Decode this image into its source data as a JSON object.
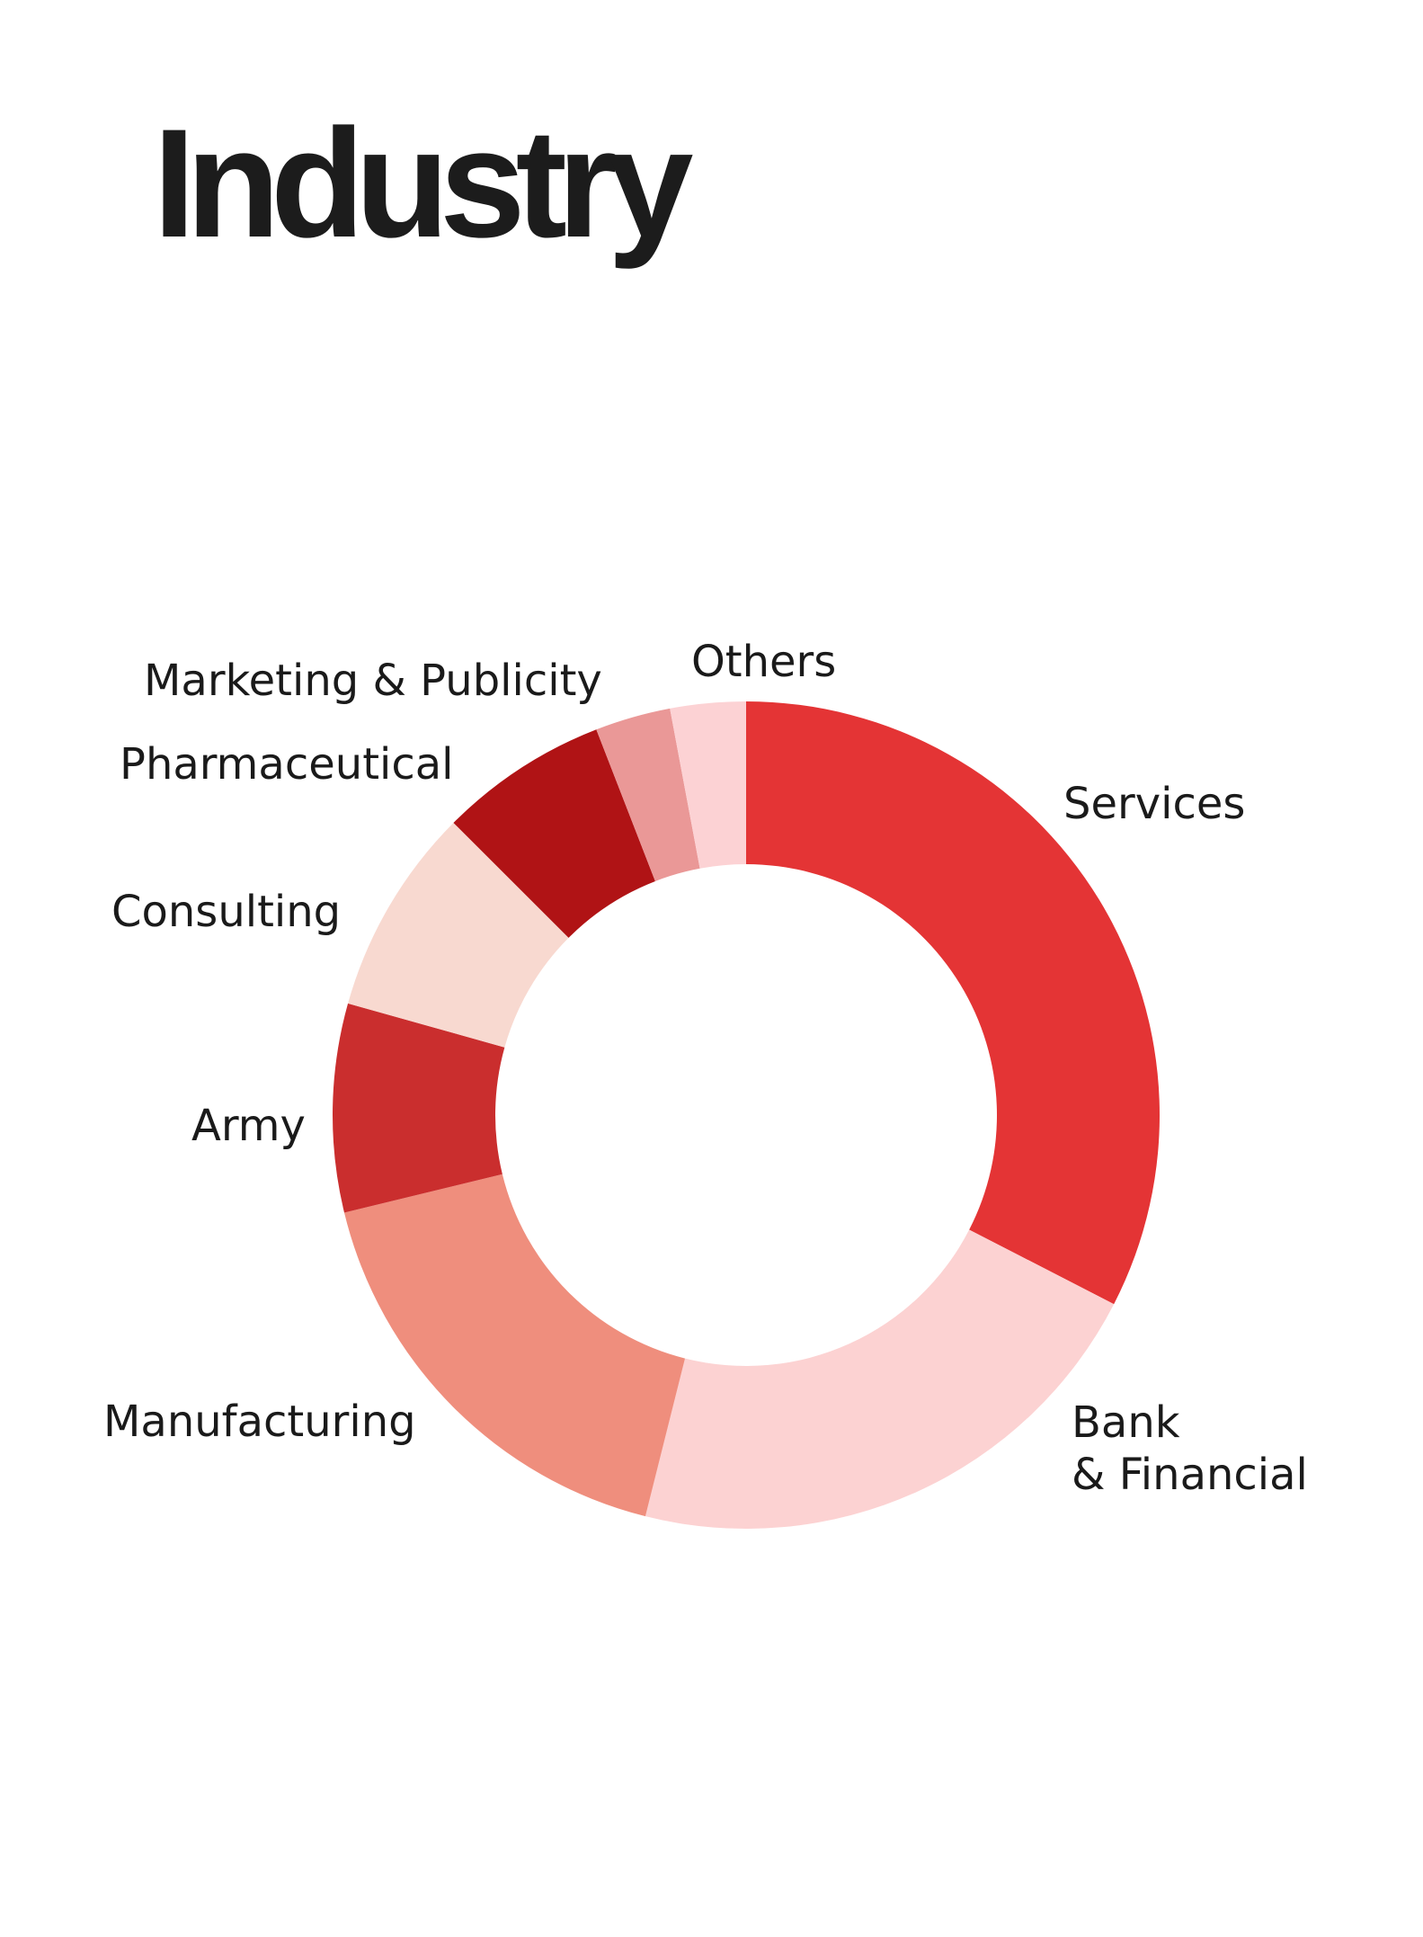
{
  "page": {
    "title": "Industry"
  },
  "chart_data": {
    "type": "pie",
    "variant": "donut",
    "title": "Industry",
    "start": "12 o'clock",
    "direction": "clockwise",
    "legend": "none",
    "labels_placement": "outside",
    "slices": [
      {
        "label": "Services",
        "value": 32.0,
        "color": "#E43435"
      },
      {
        "label": "Bank\n& Financial",
        "value": 21.0,
        "color": "#FCD2D2"
      },
      {
        "label": "Manufacturing",
        "value": 17.0,
        "color": "#EF8E7D"
      },
      {
        "label": "Army",
        "value": 8.0,
        "color": "#CA2E2E"
      },
      {
        "label": "Consulting",
        "value": 8.0,
        "color": "#F8D9D0"
      },
      {
        "label": "Pharmaceutical",
        "value": 6.5,
        "color": "#B01315"
      },
      {
        "label": "Marketing & Publicity",
        "value": 2.9,
        "color": "#EA9897"
      },
      {
        "label": "Others",
        "value": 2.9,
        "color": "#FCD2D4"
      }
    ]
  }
}
